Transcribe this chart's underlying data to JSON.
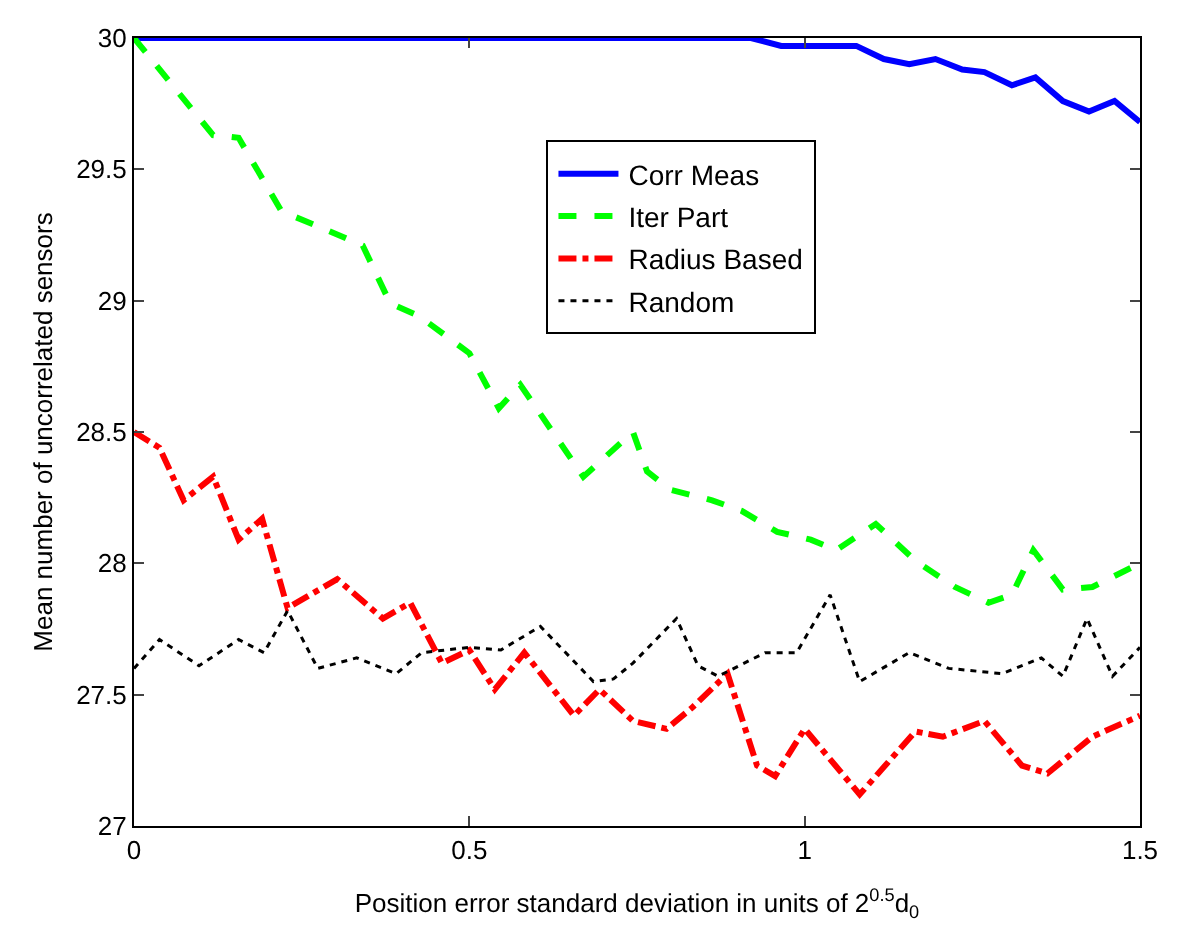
{
  "chart_data": {
    "type": "line",
    "xlabel": "Position error standard deviation in units of 2$^{0.5}$d$_{0}$",
    "ylabel": "Mean number of uncorrelated sensors",
    "xlim": [
      0,
      1.5
    ],
    "ylim": [
      27,
      30
    ],
    "xticks": [
      0,
      0.5,
      1,
      1.5
    ],
    "yticks": [
      27,
      27.5,
      28,
      28.5,
      29,
      29.5,
      30
    ],
    "legend": "top",
    "marker": "none",
    "series": [
      {
        "name": "Corr Meas",
        "color": "#0000ff",
        "line_style": "solid",
        "x": [
          0,
          0.5,
          0.85,
          0.92,
          0.965,
          1.077,
          1.118,
          1.156,
          1.195,
          1.235,
          1.268,
          1.309,
          1.344,
          1.385,
          1.424,
          1.462,
          1.5
        ],
        "values": [
          30,
          30,
          30,
          30,
          29.97,
          29.97,
          29.92,
          29.9,
          29.92,
          29.88,
          29.87,
          29.82,
          29.85,
          29.76,
          29.72,
          29.76,
          29.68
        ]
      },
      {
        "name": "Iter Part",
        "color": "#00ff00",
        "line_style": "dashed",
        "x": [
          0,
          0.118,
          0.156,
          0.22,
          0.268,
          0.341,
          0.382,
          0.426,
          0.5,
          0.544,
          0.576,
          0.67,
          0.744,
          0.765,
          0.8,
          0.862,
          0.906,
          0.959,
          1.009,
          1.047,
          1.106,
          1.165,
          1.224,
          1.274,
          1.309,
          1.341,
          1.385,
          1.429,
          1.5
        ],
        "values": [
          30,
          29.63,
          29.62,
          29.34,
          29.29,
          29.21,
          28.99,
          28.94,
          28.8,
          28.59,
          28.68,
          28.33,
          28.5,
          28.35,
          28.28,
          28.24,
          28.2,
          28.12,
          28.09,
          28.05,
          28.15,
          28.01,
          27.91,
          27.85,
          27.88,
          28.05,
          27.9,
          27.91,
          28.0
        ]
      },
      {
        "name": "Radius Based",
        "color": "#ff0000",
        "line_style": "dashdot",
        "x": [
          0,
          0.038,
          0.074,
          0.118,
          0.156,
          0.191,
          0.229,
          0.303,
          0.371,
          0.412,
          0.459,
          0.5,
          0.538,
          0.582,
          0.656,
          0.694,
          0.744,
          0.794,
          0.832,
          0.885,
          0.929,
          0.956,
          1.0,
          1.082,
          1.165,
          1.206,
          1.268,
          1.324,
          1.362,
          1.429,
          1.5
        ],
        "values": [
          28.5,
          28.44,
          28.24,
          28.33,
          28.09,
          28.17,
          27.83,
          27.94,
          27.79,
          27.85,
          27.62,
          27.67,
          27.52,
          27.66,
          27.42,
          27.52,
          27.4,
          27.37,
          27.45,
          27.58,
          27.23,
          27.19,
          27.37,
          27.12,
          27.36,
          27.34,
          27.4,
          27.23,
          27.2,
          27.34,
          27.42
        ]
      },
      {
        "name": "Random",
        "color": "#000000",
        "line_style": "dotted",
        "x": [
          0,
          0.038,
          0.097,
          0.156,
          0.194,
          0.229,
          0.274,
          0.332,
          0.391,
          0.429,
          0.5,
          0.547,
          0.606,
          0.685,
          0.715,
          0.744,
          0.809,
          0.841,
          0.871,
          0.941,
          0.988,
          1.038,
          1.082,
          1.156,
          1.215,
          1.294,
          1.353,
          1.385,
          1.421,
          1.459,
          1.5
        ],
        "values": [
          27.6,
          27.71,
          27.61,
          27.71,
          27.66,
          27.82,
          27.6,
          27.64,
          27.58,
          27.66,
          27.68,
          27.67,
          27.76,
          27.55,
          27.56,
          27.62,
          27.79,
          27.61,
          27.57,
          27.66,
          27.66,
          27.88,
          27.55,
          27.66,
          27.6,
          27.58,
          27.64,
          27.57,
          27.79,
          27.57,
          27.68
        ]
      }
    ]
  }
}
